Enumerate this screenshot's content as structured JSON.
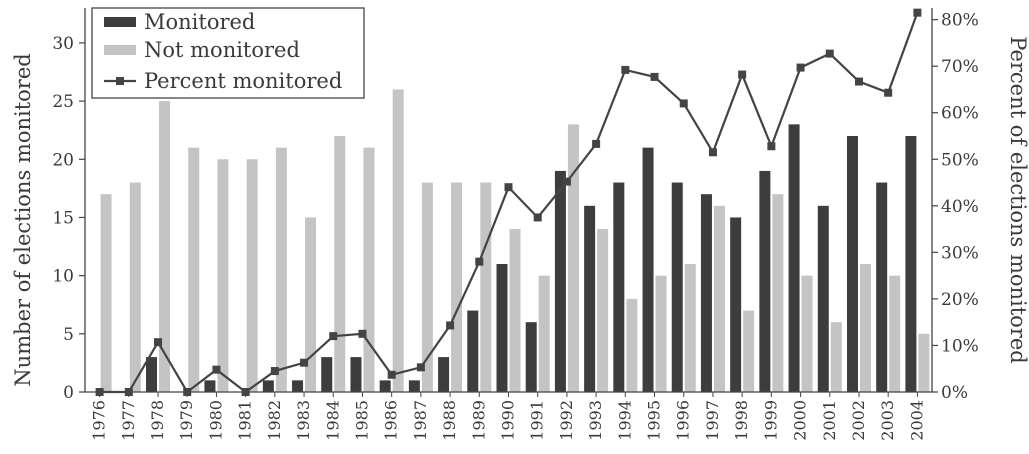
{
  "chart_data": {
    "type": "bar",
    "categories": [
      "1976",
      "1977",
      "1978",
      "1979",
      "1980",
      "1981",
      "1982",
      "1983",
      "1984",
      "1985",
      "1986",
      "1987",
      "1988",
      "1989",
      "1990",
      "1991",
      "1992",
      "1993",
      "1994",
      "1995",
      "1996",
      "1997",
      "1998",
      "1999",
      "2000",
      "2001",
      "2002",
      "2003",
      "2004"
    ],
    "series": [
      {
        "name": "Monitored",
        "type": "bar",
        "axis": "left",
        "values": [
          0,
          0,
          3,
          0,
          1,
          0,
          1,
          1,
          3,
          3,
          1,
          1,
          3,
          7,
          11,
          6,
          19,
          16,
          18,
          21,
          18,
          17,
          15,
          19,
          23,
          16,
          22,
          18,
          22
        ]
      },
      {
        "name": "Not monitored",
        "type": "bar",
        "axis": "left",
        "values": [
          17,
          18,
          25,
          21,
          20,
          20,
          21,
          15,
          22,
          21,
          26,
          18,
          18,
          18,
          14,
          10,
          23,
          14,
          8,
          10,
          11,
          16,
          7,
          17,
          10,
          6,
          11,
          10,
          5
        ]
      },
      {
        "name": "Percent monitored",
        "type": "line",
        "axis": "right",
        "values": [
          0,
          0,
          10.7,
          0,
          4.8,
          0,
          4.5,
          6.3,
          12,
          12.5,
          3.7,
          5.3,
          14.3,
          28,
          44,
          37.5,
          45.2,
          53.3,
          69.2,
          67.7,
          62,
          51.5,
          68.2,
          52.8,
          69.7,
          72.7,
          66.7,
          64.3,
          81.5
        ]
      }
    ],
    "title": "",
    "xlabel": "",
    "ylabel": "Number of elections monitored",
    "y2label": "Percent of elections monitored",
    "ylim": [
      0,
      33
    ],
    "yticks": [
      0,
      5,
      10,
      15,
      20,
      25,
      30
    ],
    "y2lim": [
      0,
      82.5
    ],
    "y2ticks": [
      "0%",
      "10%",
      "20%",
      "30%",
      "40%",
      "50%",
      "60%",
      "70%",
      "80%"
    ],
    "legend_position": "top-left",
    "grid": false,
    "colors": {
      "monitored": "#3d3d3d",
      "not_monitored": "#c4c4c4",
      "line": "#444444"
    }
  }
}
